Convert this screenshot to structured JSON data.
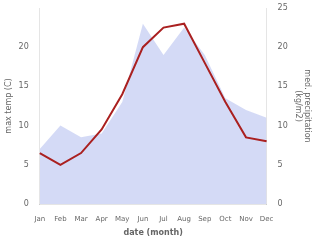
{
  "chart_data": {
    "type": "line",
    "categories": [
      "Jan",
      "Feb",
      "Mar",
      "Apr",
      "May",
      "Jun",
      "Jul",
      "Aug",
      "Sep",
      "Oct",
      "Nov",
      "Dec"
    ],
    "series": [
      {
        "type": "area",
        "color": "#b0bcee",
        "axis": "y2",
        "values": [
          7.0,
          10.0,
          8.5,
          9.0,
          13.0,
          23.0,
          19.0,
          22.5,
          19.0,
          13.5,
          12.0,
          11.0
        ]
      },
      {
        "type": "line",
        "color": "#aa2020",
        "values": [
          6.5,
          5.0,
          6.5,
          9.5,
          14.0,
          20.0,
          22.5,
          23.0,
          18.0,
          13.0,
          8.5,
          8.0
        ]
      }
    ],
    "xlabel": "date (month)",
    "ylabel": "max temp (C)",
    "y2label": "med. precipitation\n(kg/m2)",
    "ylim": [
      0,
      25
    ],
    "yticks": [
      0,
      5,
      10,
      15,
      20
    ],
    "y2lim": [
      0,
      25
    ],
    "y2ticks": [
      0,
      5,
      10,
      15,
      20,
      25
    ],
    "grid": false
  }
}
